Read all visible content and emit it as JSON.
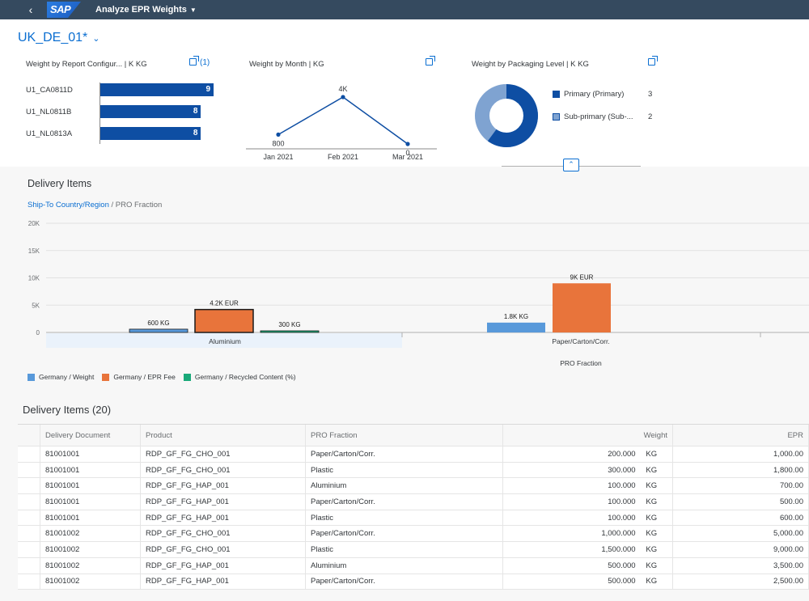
{
  "shell": {
    "back_icon": "chevron-left-icon",
    "logo": "SAP",
    "app_title": "Analyze EPR Weights"
  },
  "header": {
    "variant": "UK_DE_01*",
    "cards": {
      "report_config": {
        "title": "Weight by Report Configur...  | K KG",
        "link": "(1)",
        "bars": [
          {
            "label": "U1_CA0811D",
            "value": 9
          },
          {
            "label": "U1_NL0811B",
            "value": 8
          },
          {
            "label": "U1_NL0813A",
            "value": 8
          }
        ]
      },
      "month": {
        "title": "Weight by Month  | KG",
        "points": [
          {
            "label": "Jan 2021",
            "value": 800,
            "value_label": "800"
          },
          {
            "label": "Feb 2021",
            "value": 4000,
            "value_label": "4K"
          },
          {
            "label": "Mar 2021",
            "value": 0,
            "value_label": "0"
          }
        ]
      },
      "packaging": {
        "title": "Weight by Packaging Level  | K KG",
        "legend": [
          {
            "label": "Primary (Primary)",
            "value": "3",
            "color": "#0e4ea3"
          },
          {
            "label": "Sub-primary (Sub-...",
            "value": "2",
            "color": "#7fa3d1"
          }
        ]
      }
    }
  },
  "section": {
    "title": "Delivery Items",
    "drill_link": "Ship-To Country/Region",
    "drill_rest": " / PRO Fraction"
  },
  "chart_data": {
    "type": "bar",
    "xlabel": "PRO Fraction",
    "ylim": [
      0,
      20000
    ],
    "yticks": [
      "0",
      "5K",
      "10K",
      "15K",
      "20K"
    ],
    "categories": [
      "Aluminium",
      "Paper/Carton/Corr."
    ],
    "series": [
      {
        "name": "Germany / Weight",
        "color": "#5899da",
        "values": [
          600,
          1800
        ],
        "labels": [
          "600 KG",
          "1.8K KG"
        ]
      },
      {
        "name": "Germany / EPR Fee",
        "color": "#e8743b",
        "values": [
          4200,
          9000
        ],
        "labels": [
          "4.2K EUR",
          "9K EUR"
        ]
      },
      {
        "name": "Germany / Recycled Content (%)",
        "color": "#19a979",
        "values": [
          300,
          null
        ],
        "labels": [
          "300 KG",
          ""
        ]
      }
    ]
  },
  "table": {
    "title": "Delivery Items (20)",
    "columns": [
      "Delivery Document",
      "Product",
      "PRO Fraction",
      "Weight",
      "EPR"
    ],
    "rows": [
      {
        "doc": "81001001",
        "product": "RDP_GF_FG_CHO_001",
        "fraction": "Paper/Carton/Corr.",
        "weight": "200.000",
        "unit": "KG",
        "epr": "1,000.00"
      },
      {
        "doc": "81001001",
        "product": "RDP_GF_FG_CHO_001",
        "fraction": "Plastic",
        "weight": "300.000",
        "unit": "KG",
        "epr": "1,800.00"
      },
      {
        "doc": "81001001",
        "product": "RDP_GF_FG_HAP_001",
        "fraction": "Aluminium",
        "weight": "100.000",
        "unit": "KG",
        "epr": "700.00"
      },
      {
        "doc": "81001001",
        "product": "RDP_GF_FG_HAP_001",
        "fraction": "Paper/Carton/Corr.",
        "weight": "100.000",
        "unit": "KG",
        "epr": "500.00"
      },
      {
        "doc": "81001001",
        "product": "RDP_GF_FG_HAP_001",
        "fraction": "Plastic",
        "weight": "100.000",
        "unit": "KG",
        "epr": "600.00"
      },
      {
        "doc": "81001002",
        "product": "RDP_GF_FG_CHO_001",
        "fraction": "Paper/Carton/Corr.",
        "weight": "1,000.000",
        "unit": "KG",
        "epr": "5,000.00"
      },
      {
        "doc": "81001002",
        "product": "RDP_GF_FG_CHO_001",
        "fraction": "Plastic",
        "weight": "1,500.000",
        "unit": "KG",
        "epr": "9,000.00"
      },
      {
        "doc": "81001002",
        "product": "RDP_GF_FG_HAP_001",
        "fraction": "Aluminium",
        "weight": "500.000",
        "unit": "KG",
        "epr": "3,500.00"
      },
      {
        "doc": "81001002",
        "product": "RDP_GF_FG_HAP_001",
        "fraction": "Paper/Carton/Corr.",
        "weight": "500.000",
        "unit": "KG",
        "epr": "2,500.00"
      }
    ]
  }
}
